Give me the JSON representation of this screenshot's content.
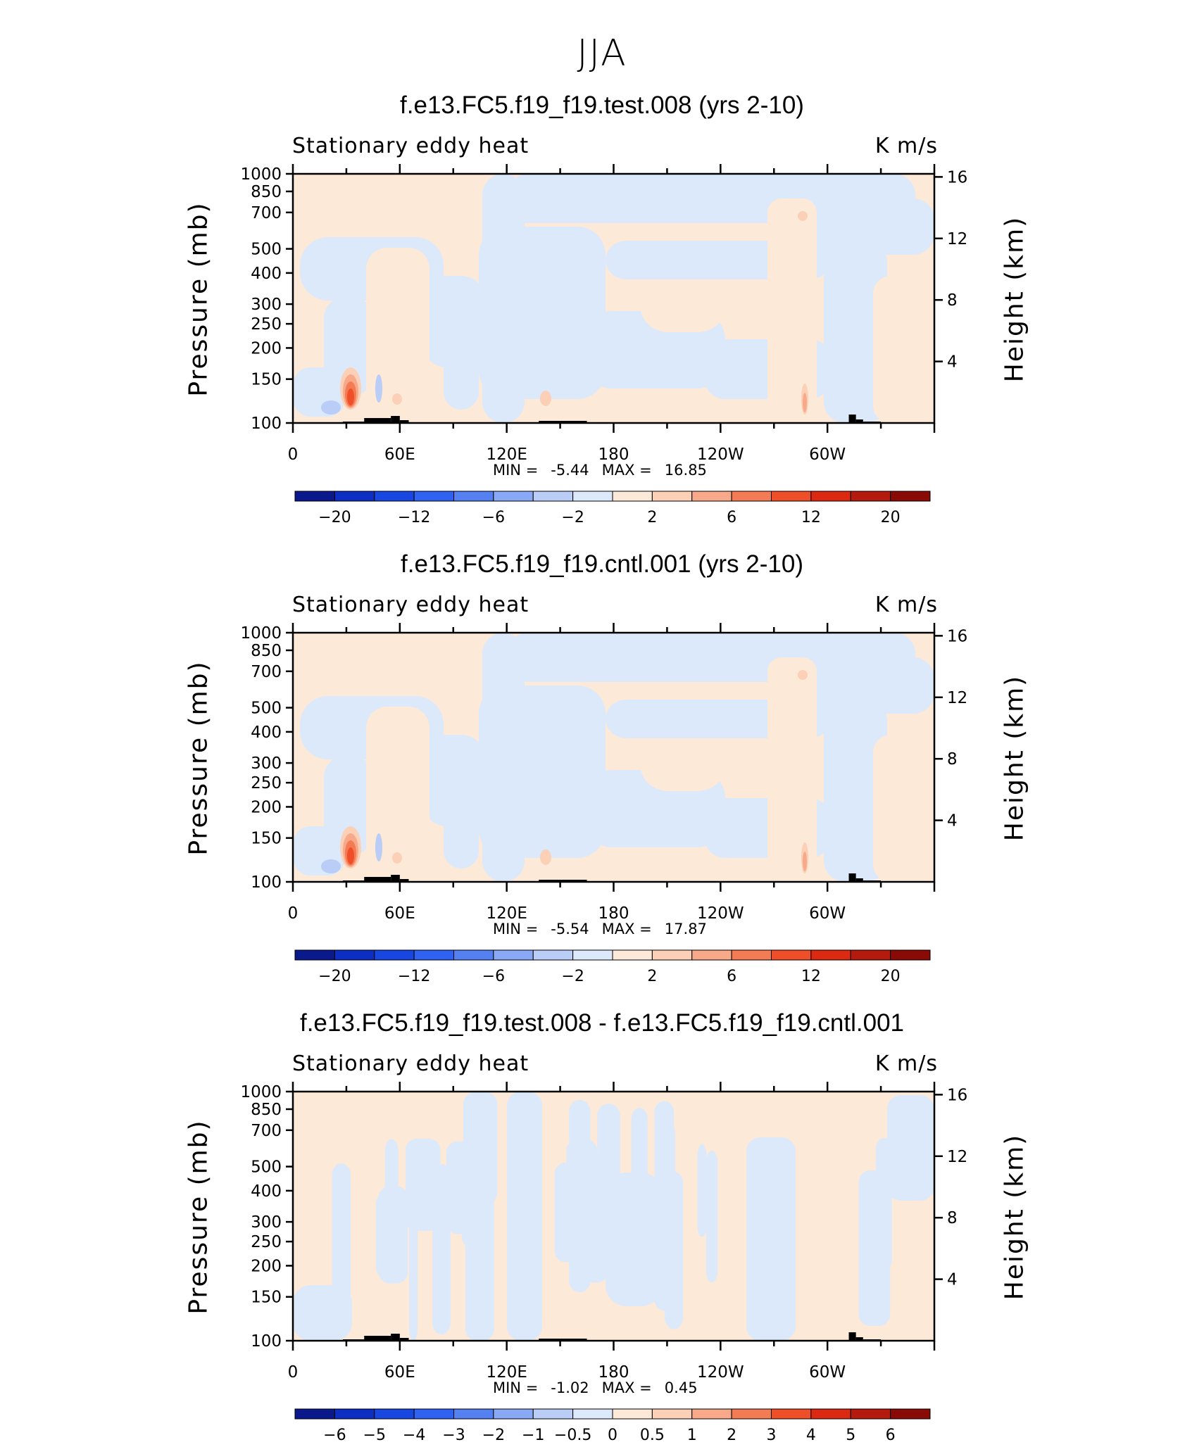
{
  "page_title": "JJA",
  "chart_data": [
    {
      "type": "heatmap",
      "title": "f.e13.FC5.f19_f19.test.008 (yrs 2-10)",
      "variable_label": "Stationary eddy heat",
      "units": "K m/s",
      "ylabel_left": "Pressure (mb)",
      "ylabel_right": "Height (km)",
      "y_left_ticks": [
        "100",
        "150",
        "200",
        "250",
        "300",
        "400",
        "500",
        "700",
        "850",
        "1000"
      ],
      "y_right_ticks": [
        "16",
        "12",
        "8",
        "4"
      ],
      "x_ticks": [
        "0",
        "60E",
        "120E",
        "180",
        "120W",
        "60W"
      ],
      "xlim": [
        0,
        360
      ],
      "ylim": [
        1000,
        100
      ],
      "min_label": "MIN =",
      "min_value": "-5.44",
      "max_label": "MAX =",
      "max_value": "16.85",
      "colorbar_labels": [
        "−20",
        "−12",
        "−6",
        "−2",
        "2",
        "6",
        "12",
        "20"
      ],
      "colorbar_colors": [
        "#0a1a8c",
        "#0d2ec2",
        "#1746e0",
        "#2f62f0",
        "#5580f2",
        "#89a8f5",
        "#b9cdf7",
        "#dbe9fb",
        "#fde9d8",
        "#fbd0b6",
        "#f7a98a",
        "#f47c55",
        "#ef4f28",
        "#dc2a12",
        "#b41a0e",
        "#8a0a06"
      ]
    },
    {
      "type": "heatmap",
      "title": "f.e13.FC5.f19_f19.cntl.001 (yrs 2-10)",
      "variable_label": "Stationary eddy heat",
      "units": "K m/s",
      "ylabel_left": "Pressure (mb)",
      "ylabel_right": "Height (km)",
      "y_left_ticks": [
        "100",
        "150",
        "200",
        "250",
        "300",
        "400",
        "500",
        "700",
        "850",
        "1000"
      ],
      "y_right_ticks": [
        "16",
        "12",
        "8",
        "4"
      ],
      "x_ticks": [
        "0",
        "60E",
        "120E",
        "180",
        "120W",
        "60W"
      ],
      "xlim": [
        0,
        360
      ],
      "ylim": [
        1000,
        100
      ],
      "min_label": "MIN =",
      "min_value": "-5.54",
      "max_label": "MAX =",
      "max_value": "17.87",
      "colorbar_labels": [
        "−20",
        "−12",
        "−6",
        "−2",
        "2",
        "6",
        "12",
        "20"
      ],
      "colorbar_colors": [
        "#0a1a8c",
        "#0d2ec2",
        "#1746e0",
        "#2f62f0",
        "#5580f2",
        "#89a8f5",
        "#b9cdf7",
        "#dbe9fb",
        "#fde9d8",
        "#fbd0b6",
        "#f7a98a",
        "#f47c55",
        "#ef4f28",
        "#dc2a12",
        "#b41a0e",
        "#8a0a06"
      ]
    },
    {
      "type": "heatmap",
      "title": "f.e13.FC5.f19_f19.test.008 - f.e13.FC5.f19_f19.cntl.001",
      "variable_label": "Stationary eddy heat",
      "units": "K m/s",
      "ylabel_left": "Pressure (mb)",
      "ylabel_right": "Height (km)",
      "y_left_ticks": [
        "100",
        "150",
        "200",
        "250",
        "300",
        "400",
        "500",
        "700",
        "850",
        "1000"
      ],
      "y_right_ticks": [
        "16",
        "12",
        "8",
        "4"
      ],
      "x_ticks": [
        "0",
        "60E",
        "120E",
        "180",
        "120W",
        "60W"
      ],
      "xlim": [
        0,
        360
      ],
      "ylim": [
        1000,
        100
      ],
      "min_label": "MIN =",
      "min_value": "-1.02",
      "max_label": "MAX =",
      "max_value": "0.45",
      "colorbar_labels": [
        "−6",
        "−5",
        "−4",
        "−3",
        "−2",
        "−1",
        "−0.5",
        "0",
        "0.5",
        "1",
        "2",
        "3",
        "4",
        "5",
        "6"
      ],
      "colorbar_colors": [
        "#0a1a8c",
        "#0d2ec2",
        "#1746e0",
        "#2f62f0",
        "#5580f2",
        "#89a8f5",
        "#b9cdf7",
        "#dbe9fb",
        "#fde9d8",
        "#fbd0b6",
        "#f7a98a",
        "#f47c55",
        "#ef4f28",
        "#dc2a12",
        "#b41a0e",
        "#8a0a06"
      ]
    }
  ]
}
